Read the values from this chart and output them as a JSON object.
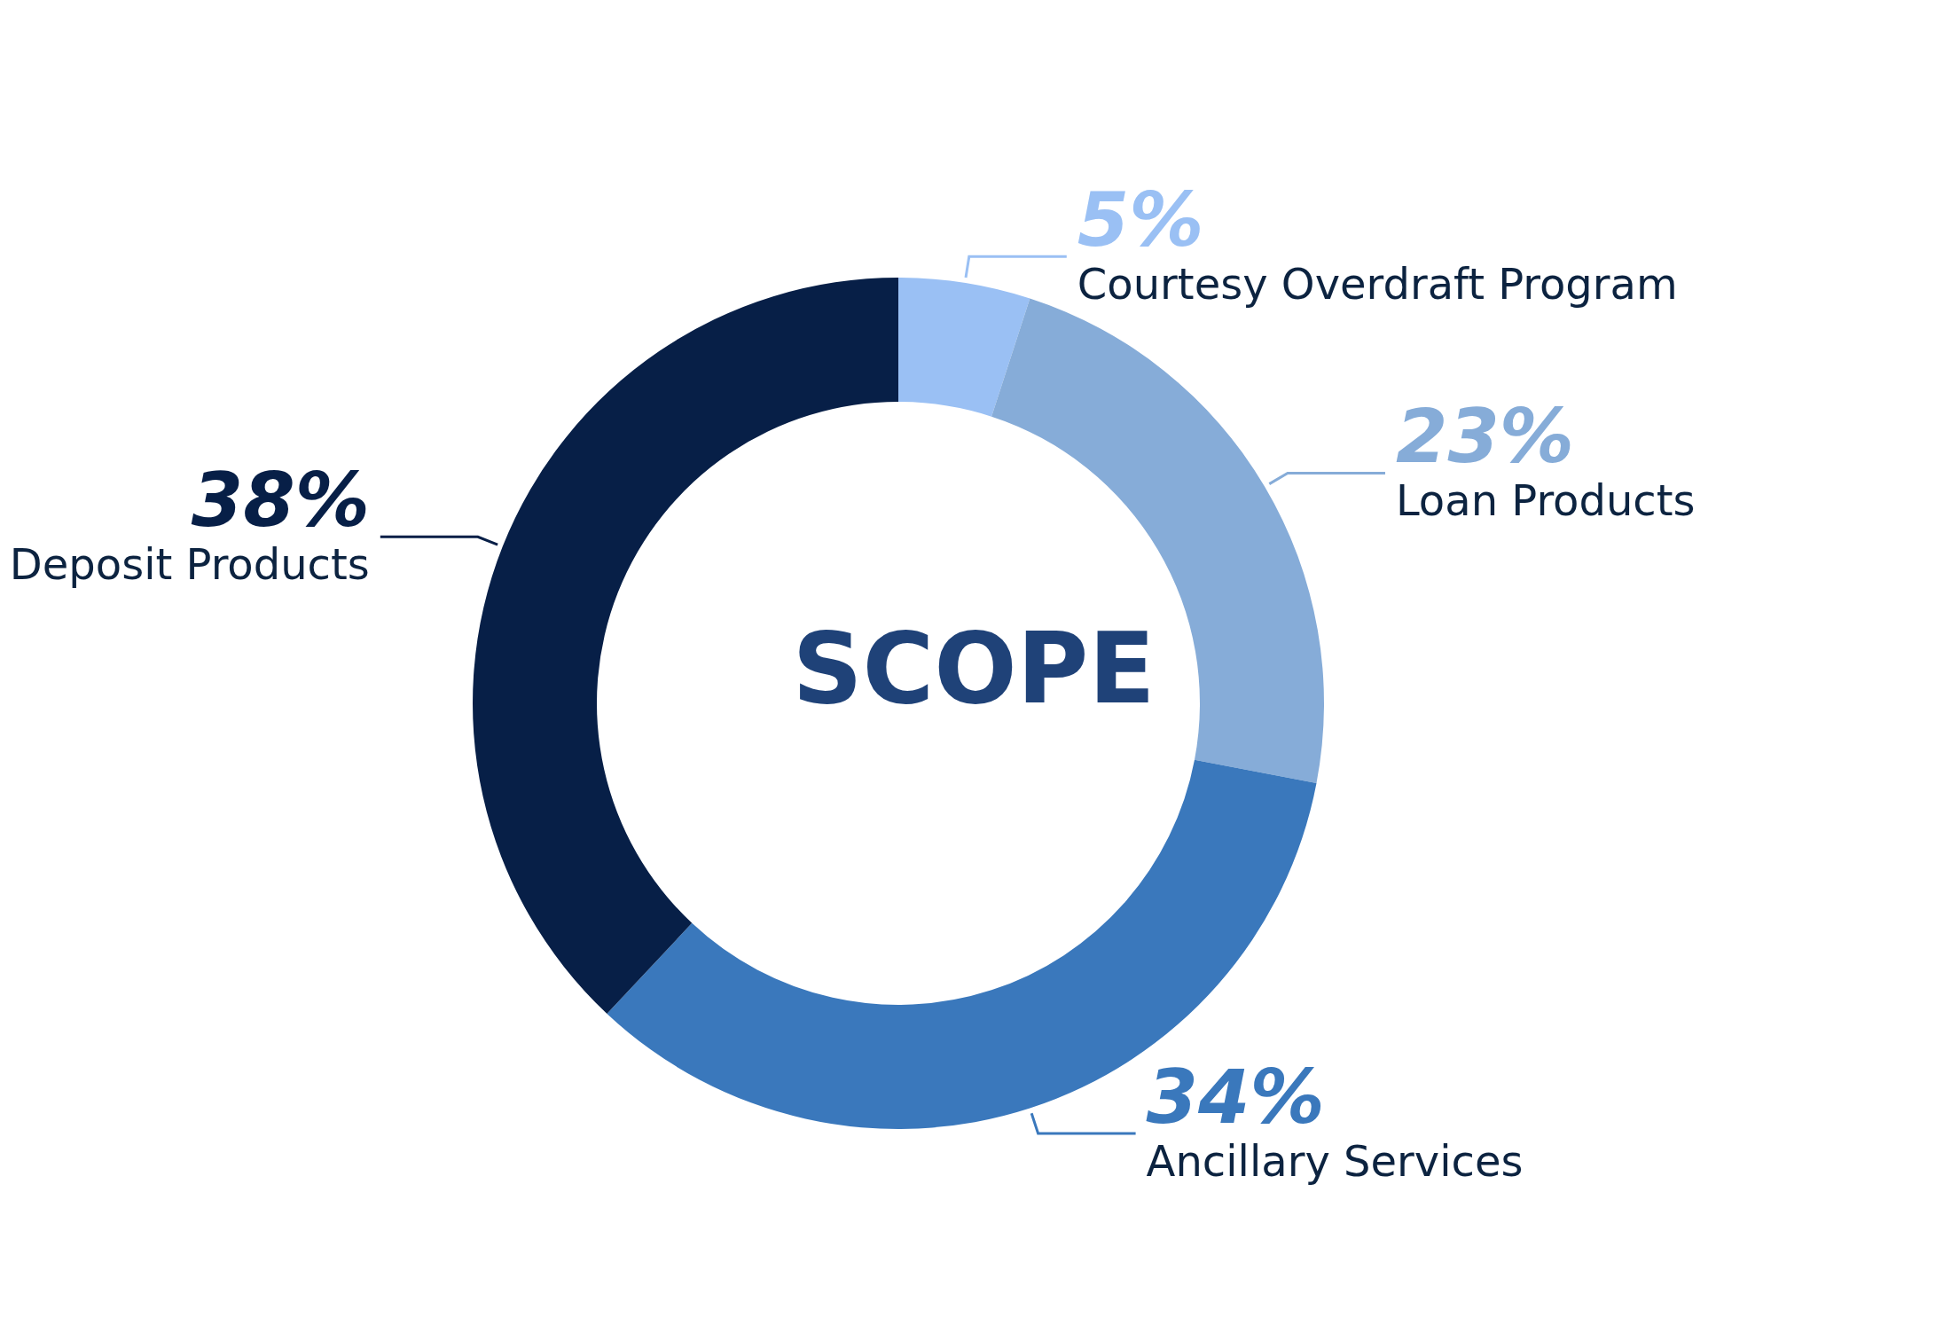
{
  "chart_data": {
    "type": "donut",
    "title": "SCOPE",
    "categories": [
      "Courtesy Overdraft Program",
      "Loan Products",
      "Ancillary Services",
      "Deposit Products"
    ],
    "values": [
      5,
      23,
      34,
      38
    ],
    "value_labels": [
      "5%",
      "23%",
      "34%",
      "38%"
    ],
    "colors": [
      "#9ac0f4",
      "#86acd8",
      "#3a78bc",
      "#071f47"
    ]
  }
}
